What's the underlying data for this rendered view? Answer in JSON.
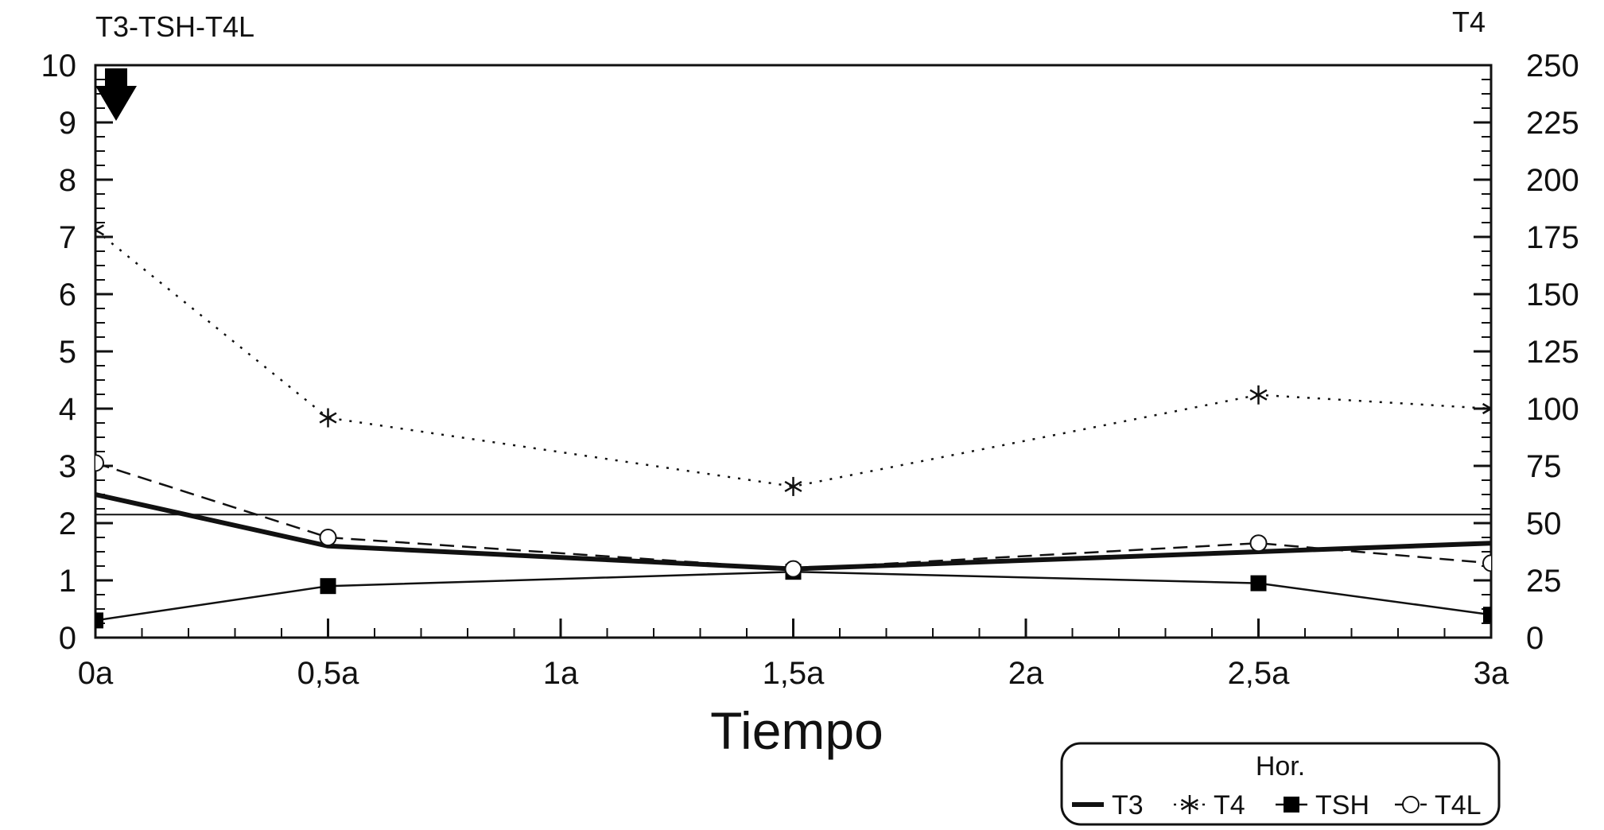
{
  "chart_data": {
    "type": "line",
    "title": "",
    "xlabel": "Tiempo",
    "ylabel_left": "T3-TSH-T4L",
    "ylabel_right": "T4",
    "categories": [
      "0a",
      "0,5a",
      "1a",
      "1,5a",
      "2a",
      "2,5a",
      "3a"
    ],
    "x": [
      0,
      0.5,
      1.5,
      2.5,
      3
    ],
    "ylim_left": [
      0,
      10
    ],
    "ylim_right": [
      0,
      250
    ],
    "yticks_left": [
      "0",
      "1",
      "2",
      "3",
      "4",
      "5",
      "6",
      "7",
      "8",
      "9",
      "10"
    ],
    "yticks_right": [
      "0",
      "25",
      "50",
      "75",
      "100",
      "125",
      "150",
      "175",
      "200",
      "225",
      "250"
    ],
    "reference_line_left": 2.15,
    "grid": false,
    "legend": {
      "title": "Hor.",
      "placement": "bottom-right"
    },
    "series": [
      {
        "name": "T3",
        "axis": "left",
        "style": "thick-solid",
        "marker": "none",
        "values": [
          2.5,
          1.6,
          1.2,
          1.5,
          1.65
        ]
      },
      {
        "name": "T4",
        "axis": "right",
        "style": "dotted",
        "marker": "star",
        "values": [
          178,
          96,
          66,
          106,
          100
        ]
      },
      {
        "name": "TSH",
        "axis": "left",
        "style": "solid",
        "marker": "square",
        "values": [
          0.3,
          0.9,
          1.15,
          0.95,
          0.4
        ]
      },
      {
        "name": "T4L",
        "axis": "left",
        "style": "dashed",
        "marker": "circle",
        "values": [
          3.05,
          1.75,
          1.2,
          1.65,
          1.3
        ]
      }
    ]
  }
}
